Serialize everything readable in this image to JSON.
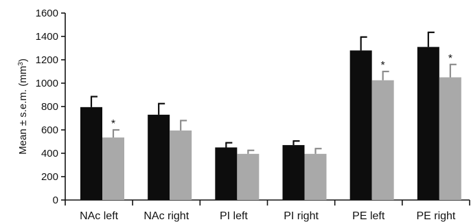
{
  "chart_data": {
    "type": "bar",
    "title": "",
    "xlabel": "",
    "ylabel": {
      "prefix": "Mean ± s.e.m. (mm",
      "sup": "3",
      "suffix": ")"
    },
    "ylim": [
      0,
      1600
    ],
    "yticks": [
      "0",
      "200",
      "400",
      "600",
      "800",
      "1000",
      "1200",
      "1400",
      "1600"
    ],
    "categories": [
      "NAc left",
      "NAc right",
      "PI left",
      "PI right",
      "PE left",
      "PE right"
    ],
    "series": [
      {
        "color": "#0d0d0d",
        "values": [
          795,
          730,
          450,
          470,
          1280,
          1310
        ],
        "errors": [
          90,
          95,
          40,
          35,
          115,
          125
        ]
      },
      {
        "color": "#a9a9a9",
        "values": [
          535,
          595,
          395,
          395,
          1025,
          1050
        ],
        "errors": [
          65,
          85,
          30,
          45,
          75,
          110
        ]
      }
    ],
    "significance": [
      {
        "category_index": 0,
        "series_index": 1,
        "label": "*"
      },
      {
        "category_index": 4,
        "series_index": 1,
        "label": "*"
      },
      {
        "category_index": 5,
        "series_index": 1,
        "label": "*"
      }
    ],
    "grid": false,
    "legend": "none"
  }
}
